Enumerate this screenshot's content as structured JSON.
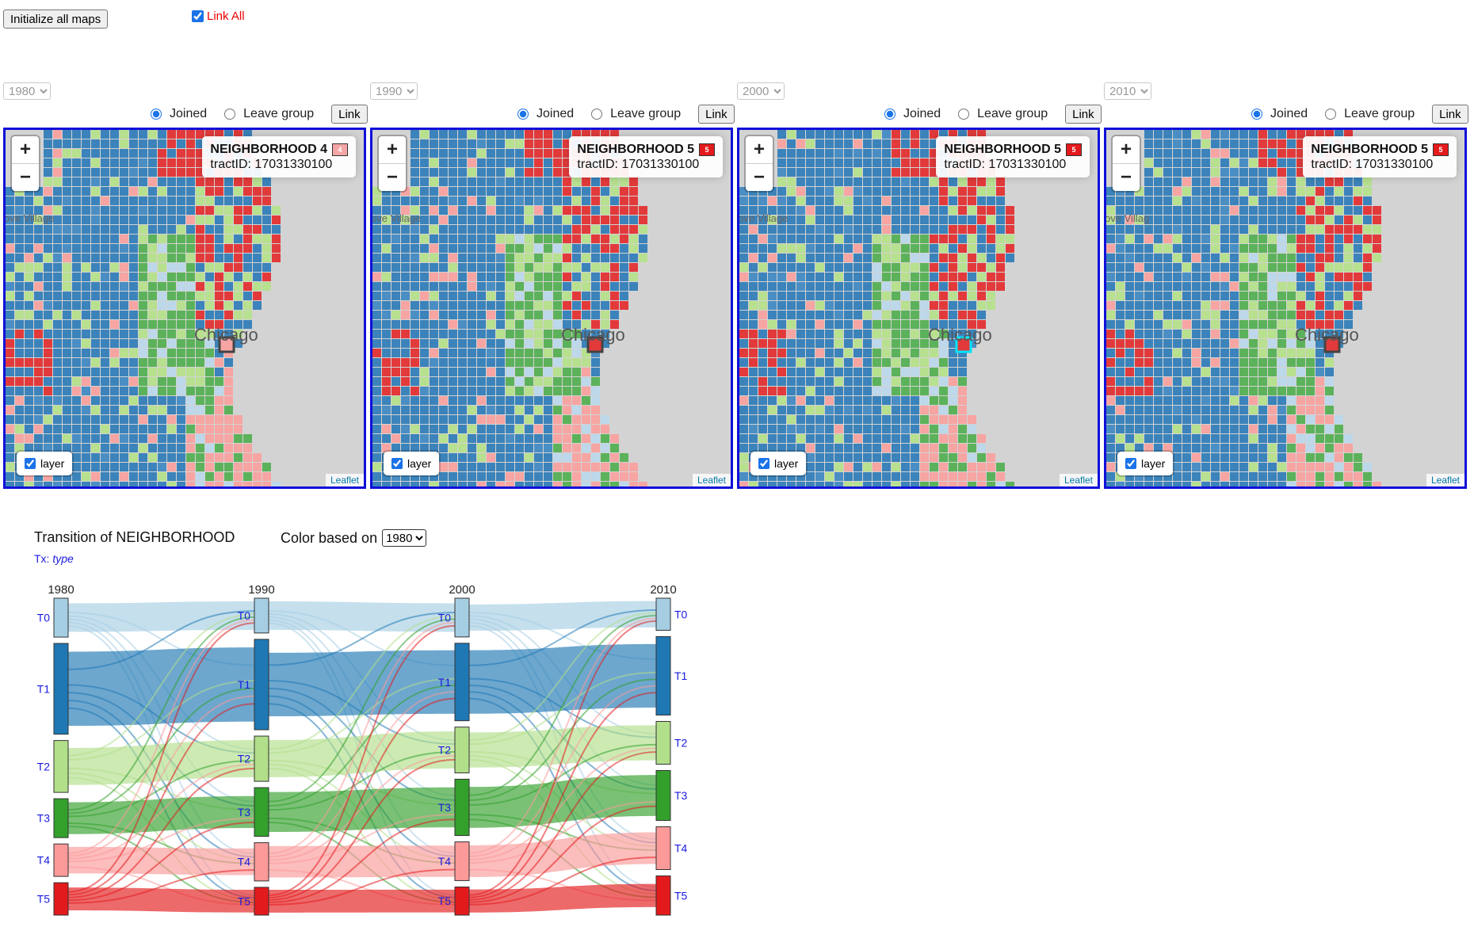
{
  "toolbar": {
    "init_label": "Initialize all maps",
    "link_all_label": "Link All",
    "link_all_checked": true
  },
  "maps": [
    {
      "year": "1980",
      "joined_label": "Joined",
      "leave_label": "Leave group",
      "link_label": "Link",
      "info_neighborhood": "NEIGHBORHOOD 4",
      "info_badge": "4",
      "info_badge_color": "#f4a6a6",
      "info_tract": "tractID: 17031330100",
      "layer_label": "layer",
      "attribution": "Leaflet",
      "place_label": "ove Village",
      "city_label": "Chicago"
    },
    {
      "year": "1990",
      "joined_label": "Joined",
      "leave_label": "Leave group",
      "link_label": "Link",
      "info_neighborhood": "NEIGHBORHOOD 5",
      "info_badge": "5",
      "info_badge_color": "#e41a1c",
      "info_tract": "tractID: 17031330100",
      "layer_label": "layer",
      "attribution": "Leaflet",
      "place_label": "ove Village",
      "city_label": "Chicago"
    },
    {
      "year": "2000",
      "joined_label": "Joined",
      "leave_label": "Leave group",
      "link_label": "Link",
      "info_neighborhood": "NEIGHBORHOOD 5",
      "info_badge": "5",
      "info_badge_color": "#e41a1c",
      "info_tract": "tractID: 17031330100",
      "layer_label": "layer",
      "attribution": "Leaflet",
      "place_label": "ove Village",
      "city_label": "Chicago"
    },
    {
      "year": "2010",
      "joined_label": "Joined",
      "leave_label": "Leave group",
      "link_label": "Link",
      "info_neighborhood": "NEIGHBORHOOD 5",
      "info_badge": "5",
      "info_badge_color": "#e41a1c",
      "info_tract": "tractID: 17031330100",
      "layer_label": "layer",
      "attribution": "Leaflet",
      "place_label": "ove Villag",
      "city_label": "Chicago"
    }
  ],
  "transition": {
    "title": "Transition of NEIGHBORHOOD",
    "color_label": "Color based on",
    "color_value": "1980",
    "tx_prefix": "Tx:",
    "tx_value": "type"
  },
  "type_colors": {
    "T0": "#a6cee3",
    "T1": "#1f78b4",
    "T2": "#b2df8a",
    "T3": "#33a02c",
    "T4": "#fb9a99",
    "T5": "#e31a1c"
  },
  "chart_data": {
    "type": "sankey",
    "years": [
      "1980",
      "1990",
      "2000",
      "2010"
    ],
    "categories": [
      "T0",
      "T1",
      "T2",
      "T3",
      "T4",
      "T5"
    ],
    "node_share": [
      [
        0.12,
        0.28,
        0.16,
        0.12,
        0.1,
        0.1
      ],
      [
        0.1,
        0.26,
        0.13,
        0.14,
        0.11,
        0.08
      ],
      [
        0.11,
        0.22,
        0.13,
        0.16,
        0.11,
        0.08
      ],
      [
        0.09,
        0.22,
        0.12,
        0.14,
        0.12,
        0.11
      ]
    ]
  }
}
